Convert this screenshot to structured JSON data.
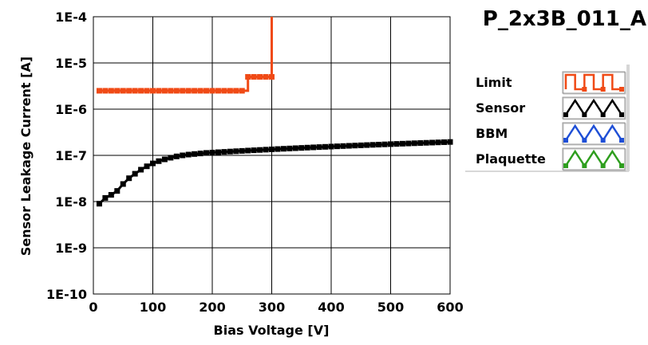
{
  "chart_data": {
    "type": "line",
    "title": "P_2x3B_011_A",
    "xlabel": "Bias Voltage [V]",
    "ylabel": "Sensor Leakage Current [A]",
    "xlim": [
      0,
      600
    ],
    "ylim": [
      1e-10,
      0.0001
    ],
    "y_scale": "log",
    "grid": true,
    "legend_position": "right",
    "x_ticks": [
      {
        "value": 0,
        "label": "0"
      },
      {
        "value": 100,
        "label": "100"
      },
      {
        "value": 200,
        "label": "200"
      },
      {
        "value": 300,
        "label": "300"
      },
      {
        "value": 400,
        "label": "400"
      },
      {
        "value": 500,
        "label": "500"
      },
      {
        "value": 600,
        "label": "600"
      }
    ],
    "y_ticks": [
      {
        "value": 0.0001,
        "label": "1E-4"
      },
      {
        "value": 1e-05,
        "label": "1E-5"
      },
      {
        "value": 1e-06,
        "label": "1E-6"
      },
      {
        "value": 1e-07,
        "label": "1E-7"
      },
      {
        "value": 1e-08,
        "label": "1E-8"
      },
      {
        "value": 1e-09,
        "label": "1E-9"
      },
      {
        "value": 1e-10,
        "label": "1E-10"
      }
    ],
    "series": [
      {
        "name": "Limit",
        "color": "#f04a16",
        "style": "step",
        "markers": true,
        "points": [
          [
            10,
            2.5e-06
          ],
          [
            20,
            2.5e-06
          ],
          [
            30,
            2.5e-06
          ],
          [
            40,
            2.5e-06
          ],
          [
            50,
            2.5e-06
          ],
          [
            60,
            2.5e-06
          ],
          [
            70,
            2.5e-06
          ],
          [
            80,
            2.5e-06
          ],
          [
            90,
            2.5e-06
          ],
          [
            100,
            2.5e-06
          ],
          [
            110,
            2.5e-06
          ],
          [
            120,
            2.5e-06
          ],
          [
            130,
            2.5e-06
          ],
          [
            140,
            2.5e-06
          ],
          [
            150,
            2.5e-06
          ],
          [
            160,
            2.5e-06
          ],
          [
            170,
            2.5e-06
          ],
          [
            180,
            2.5e-06
          ],
          [
            190,
            2.5e-06
          ],
          [
            200,
            2.5e-06
          ],
          [
            210,
            2.5e-06
          ],
          [
            220,
            2.5e-06
          ],
          [
            230,
            2.5e-06
          ],
          [
            240,
            2.5e-06
          ],
          [
            250,
            2.5e-06
          ],
          [
            260,
            5e-06
          ],
          [
            270,
            5e-06
          ],
          [
            280,
            5e-06
          ],
          [
            290,
            5e-06
          ],
          [
            300,
            5e-06
          ],
          [
            300,
            0.0001
          ]
        ]
      },
      {
        "name": "Sensor",
        "color": "#000000",
        "style": "line",
        "markers": true,
        "points": [
          [
            10,
            9e-09
          ],
          [
            20,
            1.2e-08
          ],
          [
            30,
            1.4e-08
          ],
          [
            40,
            1.7e-08
          ],
          [
            50,
            2.4e-08
          ],
          [
            60,
            3.2e-08
          ],
          [
            70,
            4e-08
          ],
          [
            80,
            4.9e-08
          ],
          [
            90,
            5.8e-08
          ],
          [
            100,
            6.7e-08
          ],
          [
            110,
            7.5e-08
          ],
          [
            120,
            8.2e-08
          ],
          [
            130,
            8.9e-08
          ],
          [
            140,
            9.5e-08
          ],
          [
            150,
            1e-07
          ],
          [
            160,
            1.04e-07
          ],
          [
            170,
            1.07e-07
          ],
          [
            180,
            1.1e-07
          ],
          [
            190,
            1.13e-07
          ],
          [
            200,
            1.15e-07
          ],
          [
            210,
            1.17e-07
          ],
          [
            220,
            1.19e-07
          ],
          [
            230,
            1.21e-07
          ],
          [
            240,
            1.23e-07
          ],
          [
            250,
            1.25e-07
          ],
          [
            260,
            1.27e-07
          ],
          [
            270,
            1.29e-07
          ],
          [
            280,
            1.31e-07
          ],
          [
            290,
            1.33e-07
          ],
          [
            300,
            1.35e-07
          ],
          [
            310,
            1.37e-07
          ],
          [
            320,
            1.39e-07
          ],
          [
            330,
            1.41e-07
          ],
          [
            340,
            1.43e-07
          ],
          [
            350,
            1.45e-07
          ],
          [
            360,
            1.47e-07
          ],
          [
            370,
            1.49e-07
          ],
          [
            380,
            1.51e-07
          ],
          [
            390,
            1.53e-07
          ],
          [
            400,
            1.55e-07
          ],
          [
            410,
            1.57e-07
          ],
          [
            420,
            1.59e-07
          ],
          [
            430,
            1.61e-07
          ],
          [
            440,
            1.63e-07
          ],
          [
            450,
            1.65e-07
          ],
          [
            460,
            1.67e-07
          ],
          [
            470,
            1.69e-07
          ],
          [
            480,
            1.71e-07
          ],
          [
            490,
            1.73e-07
          ],
          [
            500,
            1.75e-07
          ],
          [
            510,
            1.77e-07
          ],
          [
            520,
            1.79e-07
          ],
          [
            530,
            1.81e-07
          ],
          [
            540,
            1.83e-07
          ],
          [
            550,
            1.85e-07
          ],
          [
            560,
            1.87e-07
          ],
          [
            570,
            1.89e-07
          ],
          [
            580,
            1.91e-07
          ],
          [
            590,
            1.93e-07
          ],
          [
            600,
            1.95e-07
          ]
        ]
      },
      {
        "name": "BBM",
        "color": "#1f4fd6",
        "style": "line",
        "markers": false,
        "points": []
      },
      {
        "name": "Plaquette",
        "color": "#2e9e1e",
        "style": "line",
        "markers": false,
        "points": []
      }
    ]
  }
}
